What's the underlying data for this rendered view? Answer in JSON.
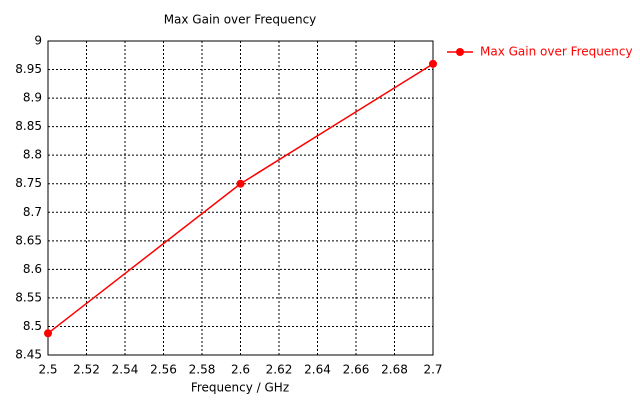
{
  "chart_data": {
    "type": "line",
    "title": "Max Gain over Frequency",
    "x_label": "Frequency / GHz",
    "x": [
      2.5,
      2.6,
      2.7
    ],
    "series": [
      {
        "name": "Max Gain over Frequency",
        "color": "#ff0000",
        "values": [
          8.488,
          8.75,
          8.96
        ]
      }
    ],
    "xlim": [
      2.5,
      2.7
    ],
    "xticks": [
      2.5,
      2.52,
      2.54,
      2.56,
      2.58,
      2.6,
      2.62,
      2.64,
      2.66,
      2.68,
      2.7
    ],
    "ylim": [
      8.45,
      9
    ],
    "yticks": [
      8.45,
      8.5,
      8.55,
      8.6,
      8.65,
      8.7,
      8.75,
      8.8,
      8.85,
      8.9,
      8.95,
      9
    ],
    "grid": true,
    "legend": "right"
  }
}
